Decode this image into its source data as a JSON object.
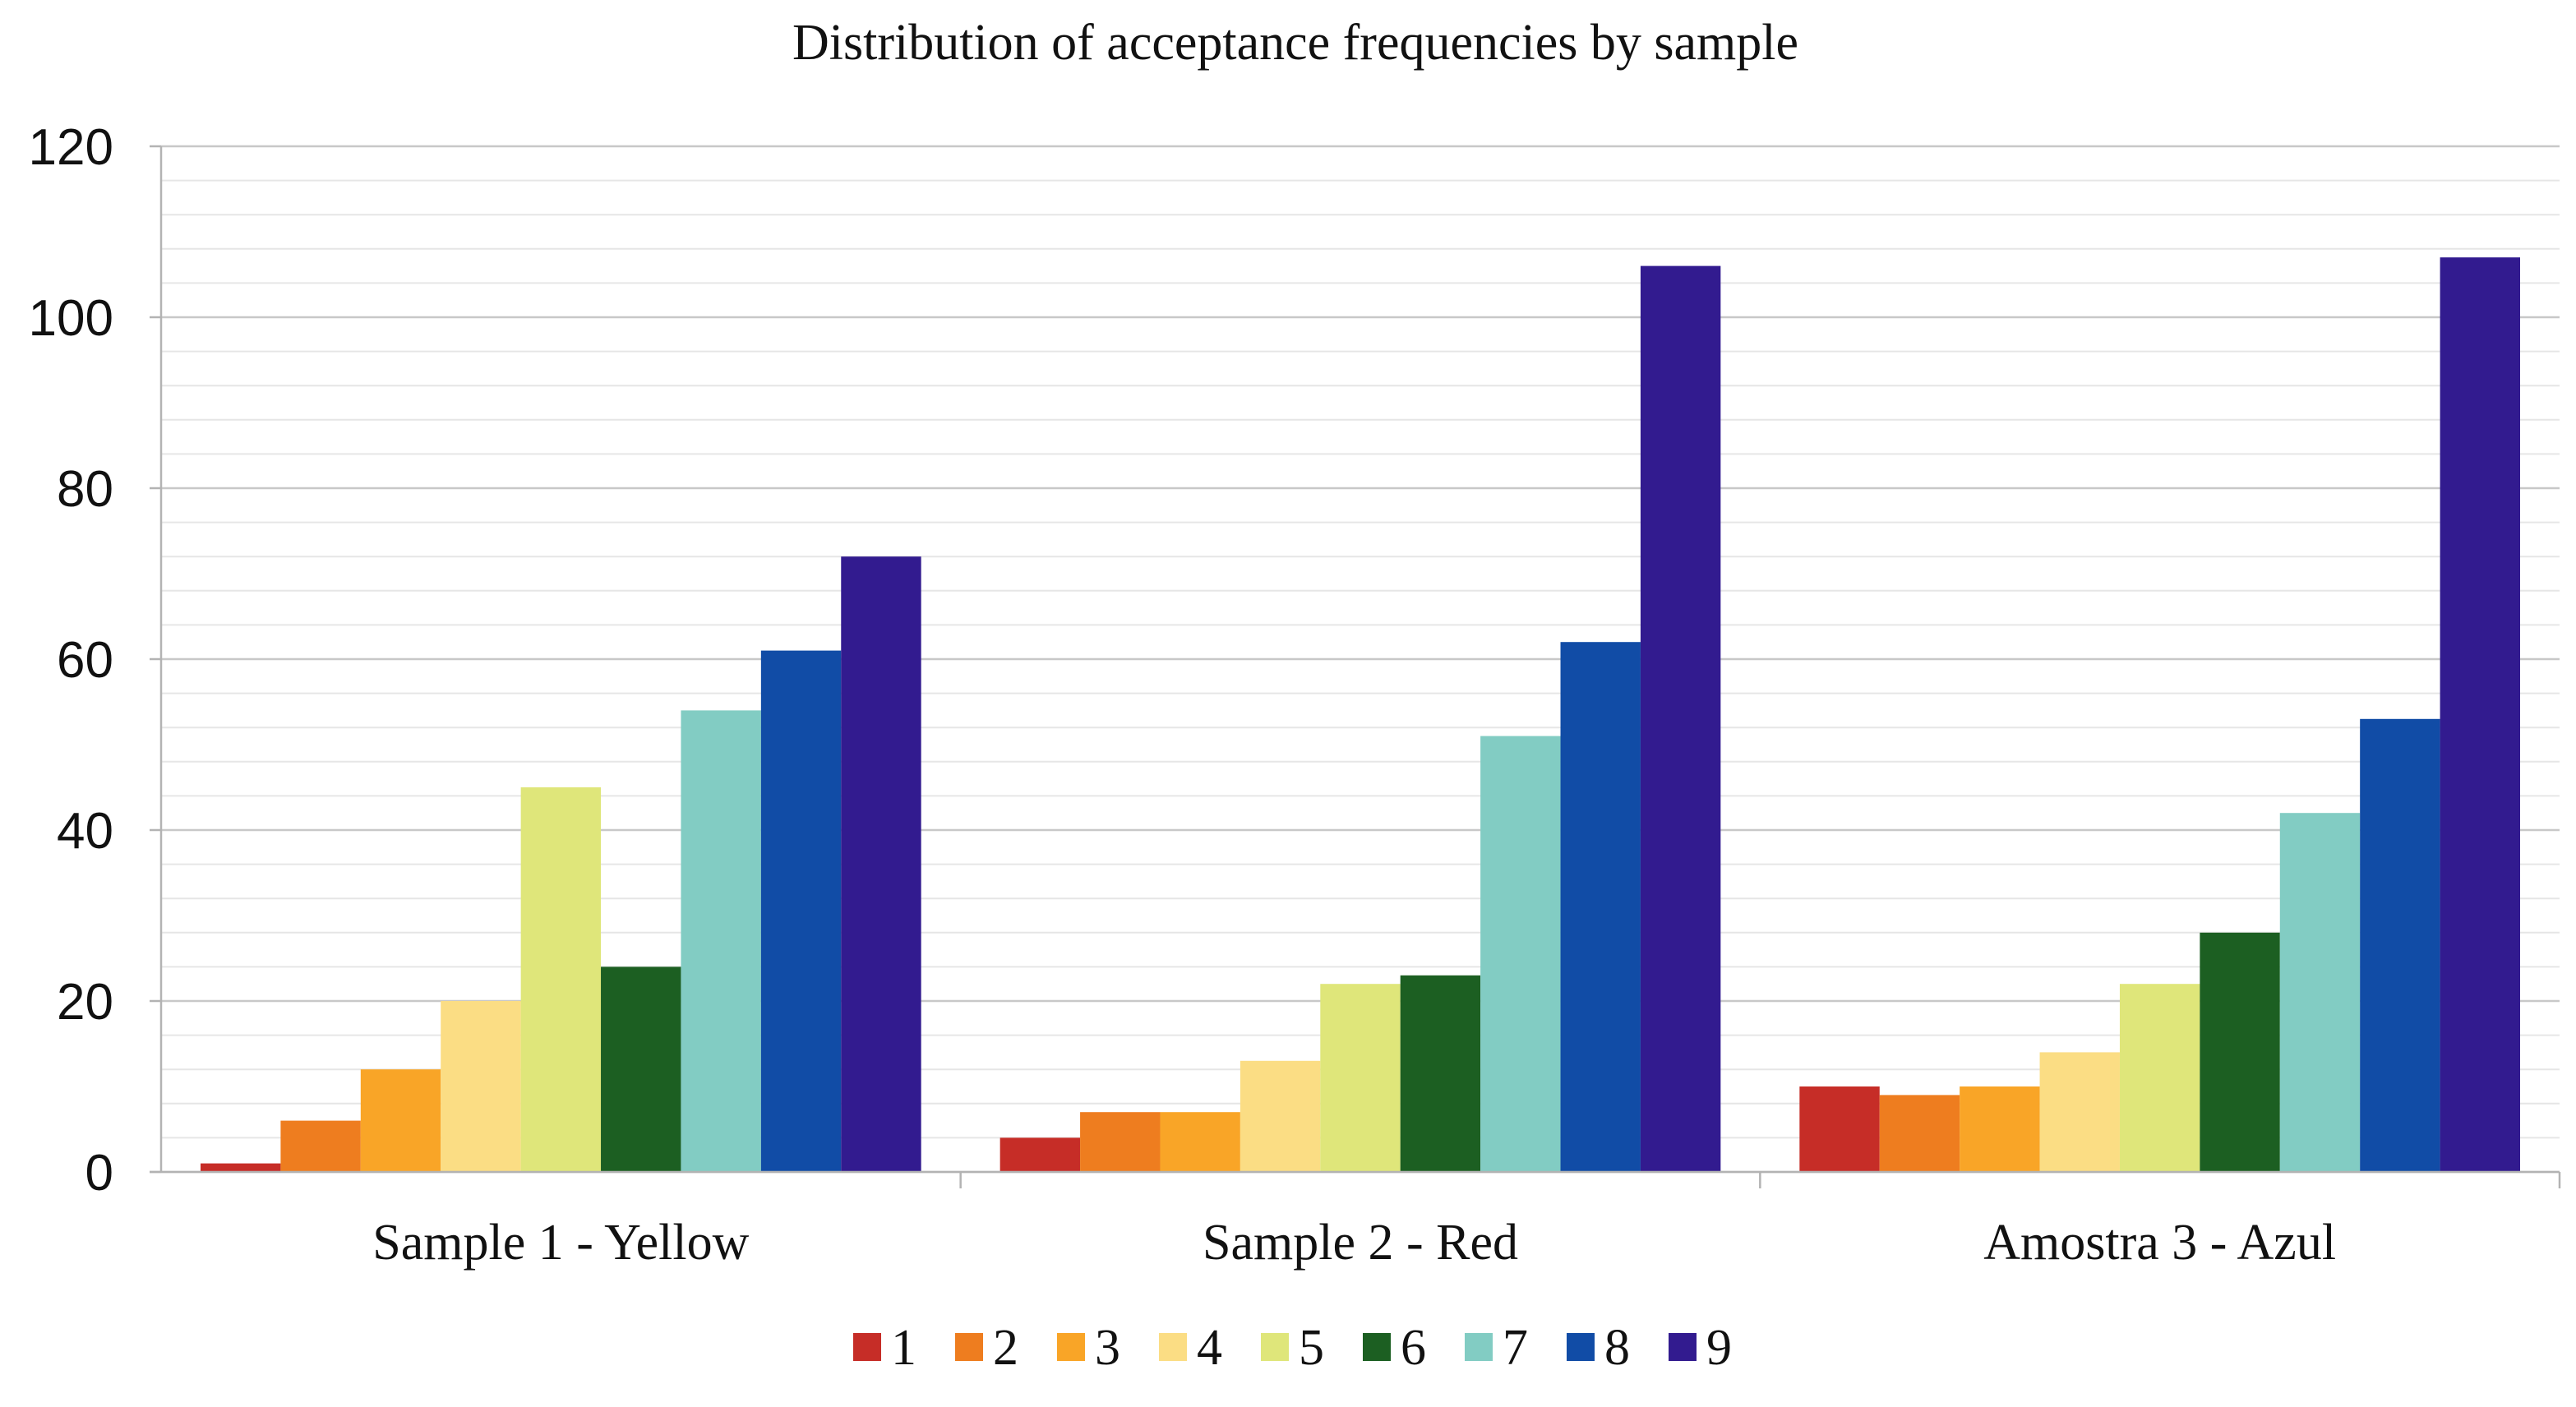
{
  "chart_data": {
    "type": "bar",
    "title": "Distribution of acceptance frequencies by sample",
    "xlabel": "",
    "ylabel": "",
    "categories": [
      "Sample 1 - Yellow",
      "Sample 2 - Red",
      "Amostra 3 - Azul"
    ],
    "ylim": [
      0,
      120
    ],
    "yticks": [
      0,
      20,
      40,
      60,
      80,
      100,
      120
    ],
    "minor_grid_step": 4,
    "grid": true,
    "legend_position": "bottom",
    "series": [
      {
        "name": "1",
        "color": "#c62d27",
        "values": [
          1,
          4,
          10
        ]
      },
      {
        "name": "2",
        "color": "#ee7d1f",
        "values": [
          6,
          7,
          9
        ]
      },
      {
        "name": "3",
        "color": "#f9a527",
        "values": [
          12,
          7,
          10
        ]
      },
      {
        "name": "4",
        "color": "#fbdd84",
        "values": [
          20,
          13,
          14
        ]
      },
      {
        "name": "5",
        "color": "#dfe67a",
        "values": [
          45,
          22,
          22
        ]
      },
      {
        "name": "6",
        "color": "#1c5f22",
        "values": [
          24,
          23,
          28
        ]
      },
      {
        "name": "7",
        "color": "#82ccc3",
        "values": [
          54,
          51,
          42
        ]
      },
      {
        "name": "8",
        "color": "#114ca6",
        "values": [
          61,
          62,
          53
        ]
      },
      {
        "name": "9",
        "color": "#321b8f",
        "values": [
          72,
          106,
          107
        ]
      }
    ]
  }
}
